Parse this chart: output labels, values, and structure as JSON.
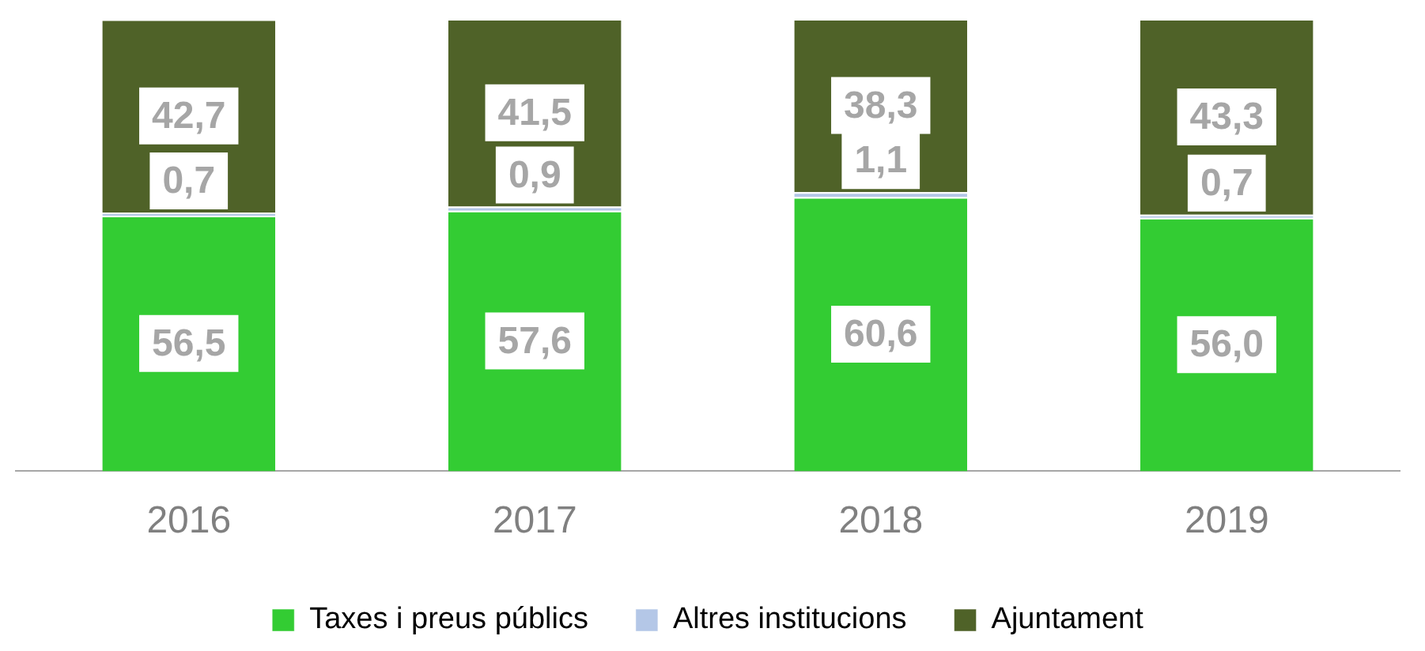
{
  "chart_data": {
    "type": "bar",
    "stacked": true,
    "categories": [
      "2016",
      "2017",
      "2018",
      "2019"
    ],
    "series": [
      {
        "name": "Taxes i preus públics",
        "color": "#33cc33",
        "values": [
          56.5,
          57.6,
          60.6,
          56.0
        ],
        "value_labels": [
          "56,5",
          "57,6",
          "60,6",
          "56,0"
        ]
      },
      {
        "name": "Altres institucions",
        "color": "#b4c7e7",
        "values": [
          0.7,
          0.9,
          1.1,
          0.7
        ],
        "value_labels": [
          "0,7",
          "0,9",
          "1,1",
          "0,7"
        ]
      },
      {
        "name": "Ajuntament",
        "color": "#4f6228",
        "values": [
          42.7,
          41.5,
          38.3,
          43.3
        ],
        "value_labels": [
          "42,7",
          "41,5",
          "38,3",
          "43,3"
        ]
      }
    ],
    "legend": "bottom",
    "grid": false
  }
}
